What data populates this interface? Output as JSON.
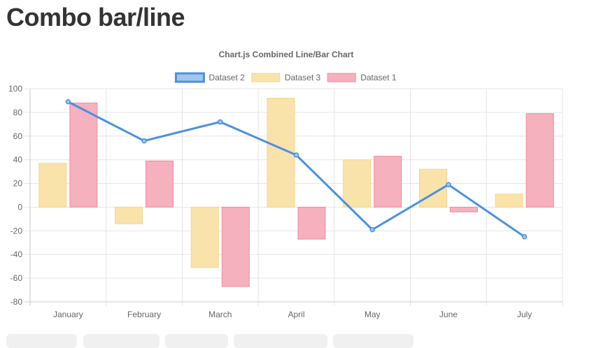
{
  "page": {
    "title": "Combo bar/line"
  },
  "chart_data": {
    "type": "bar",
    "title": "Chart.js Combined Line/Bar Chart",
    "categories": [
      "January",
      "February",
      "March",
      "April",
      "May",
      "June",
      "July"
    ],
    "ylim": [
      -80,
      100
    ],
    "yticks": [
      100,
      80,
      60,
      40,
      20,
      0,
      -20,
      -40,
      -60,
      -80
    ],
    "grid": true,
    "legend_position": "top",
    "series": [
      {
        "name": "Dataset 2",
        "type": "line",
        "values": [
          89,
          56,
          72,
          44,
          -19,
          19,
          -25
        ],
        "color": "#4a90e2",
        "fill": "#a4c6ec"
      },
      {
        "name": "Dataset 3",
        "type": "bar",
        "values": [
          37,
          -14,
          -51,
          92,
          40,
          32,
          11
        ],
        "color": "#f5d48a",
        "fill": "#f9e3ab"
      },
      {
        "name": "Dataset 1",
        "type": "bar",
        "values": [
          88,
          39,
          -67,
          -27,
          43,
          -4,
          79
        ],
        "color": "#f08a9d",
        "fill": "#f5b1bd"
      }
    ]
  },
  "actions": {
    "buttons": [
      "",
      "",
      "",
      "",
      ""
    ]
  },
  "colors": {
    "grid": "#e5e5e5",
    "axis": "#c8c8c8",
    "text": "#666666",
    "title": "#333333",
    "button": "#f0f0f0"
  }
}
